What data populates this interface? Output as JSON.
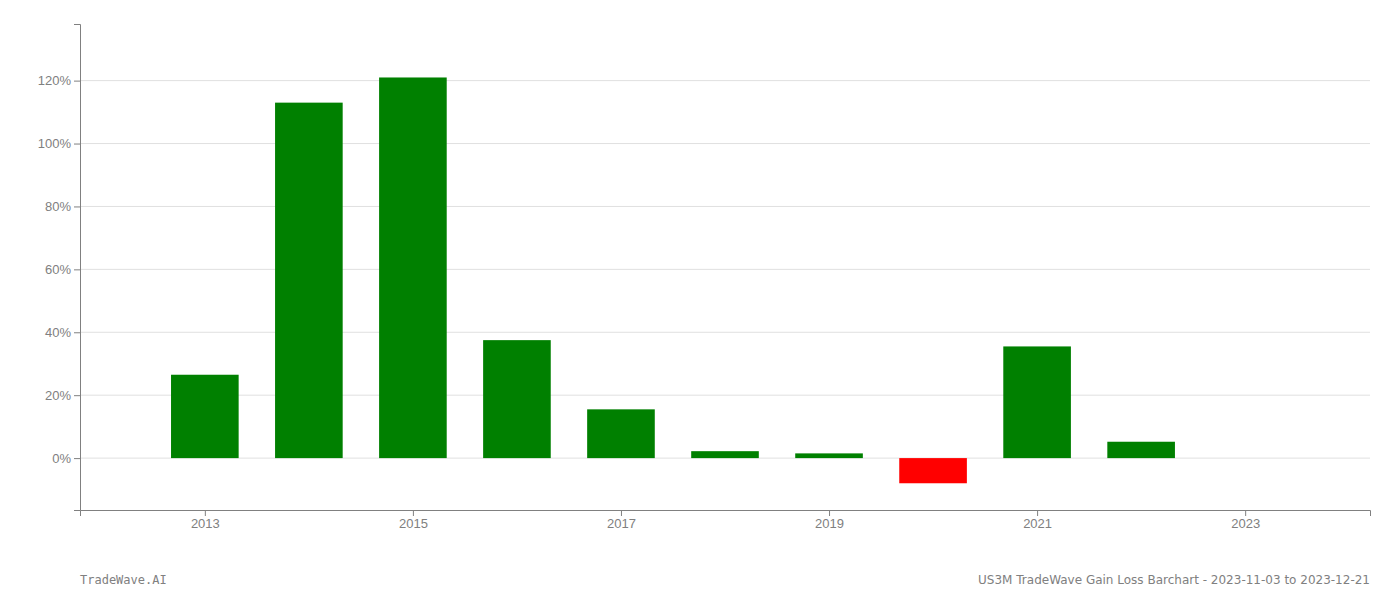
{
  "chart_data": {
    "type": "bar",
    "x": [
      2013,
      2014,
      2015,
      2016,
      2017,
      2018,
      2019,
      2020,
      2021,
      2022
    ],
    "values": [
      0.265,
      1.13,
      1.21,
      0.375,
      0.155,
      0.022,
      0.015,
      -0.08,
      0.355,
      0.052
    ],
    "colors": [
      "#008000",
      "#008000",
      "#008000",
      "#008000",
      "#008000",
      "#008000",
      "#008000",
      "#ff0000",
      "#008000",
      "#008000"
    ],
    "xlim": [
      2011.8,
      2024.2
    ],
    "xticks": [
      2013,
      2015,
      2017,
      2019,
      2021,
      2023
    ],
    "ylim": [
      -0.165,
      1.38
    ],
    "yticks": [
      {
        "value": 0.0,
        "label": "0%"
      },
      {
        "value": 0.2,
        "label": "20%"
      },
      {
        "value": 0.4,
        "label": "40%"
      },
      {
        "value": 0.6,
        "label": "60%"
      },
      {
        "value": 0.8,
        "label": "80%"
      },
      {
        "value": 1.0,
        "label": "100%"
      },
      {
        "value": 1.2,
        "label": "120%"
      }
    ],
    "grid": true,
    "annotations": [
      "TradeWave.AI",
      "US3M TradeWave Gain Loss Barchart - 2023-11-03 to 2023-12-21"
    ]
  }
}
